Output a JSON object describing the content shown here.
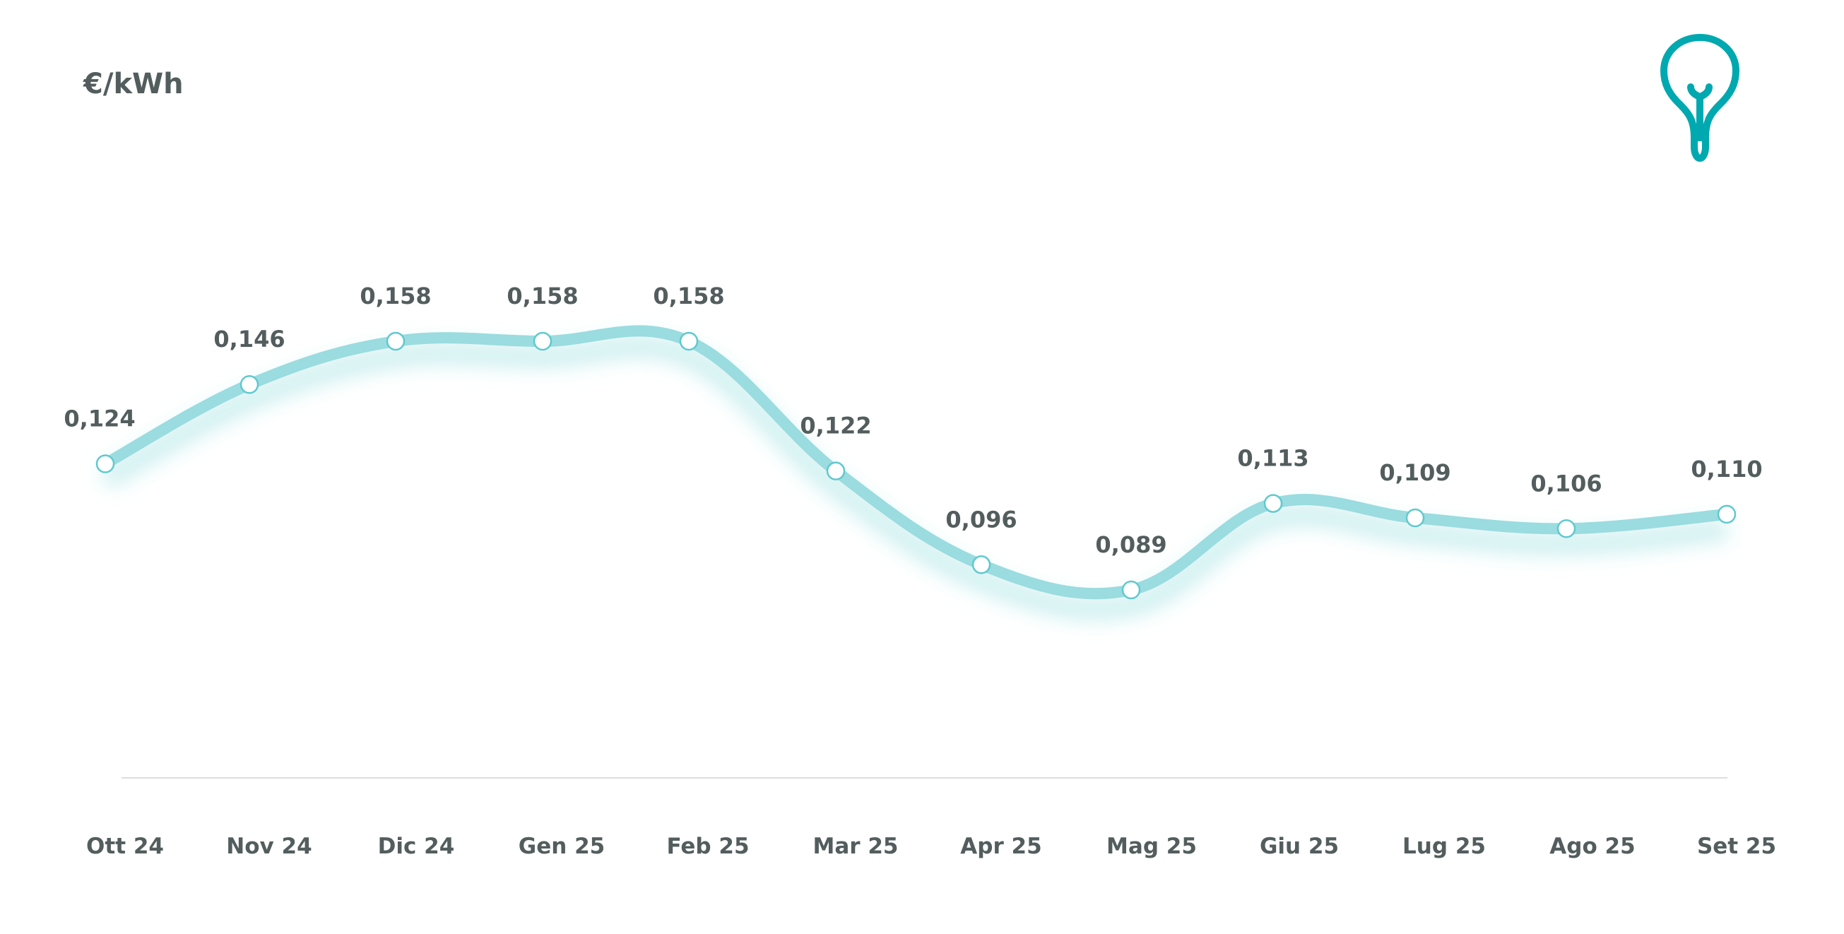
{
  "chart_data": {
    "type": "line",
    "title": "",
    "ylabel": "€/kWh",
    "xlabel": "",
    "categories": [
      "Ott 24",
      "Nov 24",
      "Dic 24",
      "Gen 25",
      "Feb 25",
      "Mar 25",
      "Apr 25",
      "Mag 25",
      "Giu 25",
      "Lug 25",
      "Ago 25",
      "Set 25"
    ],
    "values": [
      0.124,
      0.146,
      0.158,
      0.158,
      0.158,
      0.122,
      0.096,
      0.089,
      0.113,
      0.109,
      0.106,
      0.11
    ],
    "data_labels": [
      "0,124",
      "0,146",
      "0,158",
      "0,158",
      "0,158",
      "0,122",
      "0,096",
      "0,089",
      "0,113",
      "0,109",
      "0,106",
      "0,110"
    ],
    "grid": false,
    "legend": "none",
    "colors": {
      "line": "#9adcdf",
      "marker_stroke": "#5fc9cf",
      "text": "#535d5e",
      "icon": "#00a8b0",
      "axis": "#dddddd"
    }
  },
  "icon": "lightbulb-icon"
}
